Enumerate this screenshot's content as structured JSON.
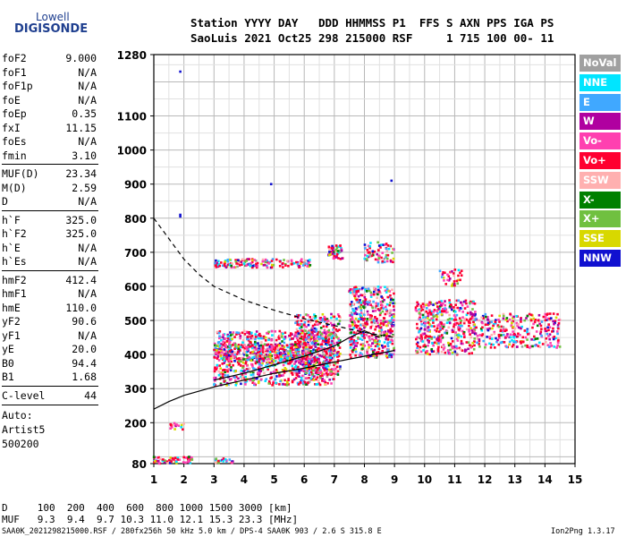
{
  "logo": {
    "line1": "Lowell",
    "line2": "DIGISONDE"
  },
  "header": {
    "row1": "Station YYYY DAY   DDD HHMMSS P1  FFS S AXN PPS IGA PS",
    "row2": "SaoLuis 2021 Oct25 298 215000 RSF     1 715 100 00- 11"
  },
  "params": {
    "group1": [
      {
        "name": "foF2",
        "value": "9.000"
      },
      {
        "name": "foF1",
        "value": "N/A"
      },
      {
        "name": "foF1p",
        "value": "N/A"
      },
      {
        "name": "foE",
        "value": "N/A"
      },
      {
        "name": "foEp",
        "value": "0.35"
      },
      {
        "name": "fxI",
        "value": "11.15"
      },
      {
        "name": "foEs",
        "value": "N/A"
      },
      {
        "name": "fmin",
        "value": "3.10"
      }
    ],
    "group2": [
      {
        "name": "MUF(D)",
        "value": "23.34"
      },
      {
        "name": "M(D)",
        "value": "2.59"
      },
      {
        "name": "D",
        "value": "N/A"
      }
    ],
    "group3": [
      {
        "name": "h`F",
        "value": "325.0"
      },
      {
        "name": "h`F2",
        "value": "325.0"
      },
      {
        "name": "h`E",
        "value": "N/A"
      },
      {
        "name": "h`Es",
        "value": "N/A"
      }
    ],
    "group4": [
      {
        "name": "hmF2",
        "value": "412.4"
      },
      {
        "name": "hmF1",
        "value": "N/A"
      },
      {
        "name": "hmE",
        "value": "110.0"
      },
      {
        "name": "yF2",
        "value": "90.6"
      },
      {
        "name": "yF1",
        "value": "N/A"
      },
      {
        "name": "yE",
        "value": "20.0"
      },
      {
        "name": "B0",
        "value": "94.4"
      },
      {
        "name": "B1",
        "value": "1.68"
      }
    ],
    "clevel": {
      "name": "C-level",
      "value": "44"
    },
    "auto": [
      "Auto:",
      "Artist5",
      "500200"
    ]
  },
  "legend": [
    {
      "label": "NoVal",
      "color": "#a0a0a0"
    },
    {
      "label": "NNE",
      "color": "#00e5ff"
    },
    {
      "label": "E",
      "color": "#40a8ff"
    },
    {
      "label": "W",
      "color": "#b000a0"
    },
    {
      "label": "Vo-",
      "color": "#ff40b0"
    },
    {
      "label": "Vo+",
      "color": "#ff0030"
    },
    {
      "label": "SSW",
      "color": "#ffb0b0"
    },
    {
      "label": "X-",
      "color": "#008000"
    },
    {
      "label": "X+",
      "color": "#70c040"
    },
    {
      "label": "SSE",
      "color": "#d8d800"
    },
    {
      "label": "NNW",
      "color": "#1010d0"
    }
  ],
  "chart_data": {
    "type": "scatter",
    "title": "",
    "xlabel": "",
    "ylabel": "",
    "xlim": [
      1,
      15
    ],
    "ylim": [
      80,
      1280
    ],
    "x_ticks": [
      1,
      2,
      3,
      4,
      5,
      6,
      7,
      8,
      9,
      10,
      11,
      12,
      13,
      14,
      15
    ],
    "y_ticks": [
      80,
      200,
      300,
      400,
      500,
      600,
      700,
      800,
      900,
      1000,
      1100,
      1280
    ],
    "grid": true,
    "traces": [
      {
        "style": "dashed",
        "x": [
          1.0,
          1.5,
          2.0,
          2.5,
          3.0,
          4.0,
          5.0,
          6.0,
          7.0,
          8.0,
          9.0
        ],
        "y": [
          800,
          740,
          680,
          635,
          600,
          560,
          530,
          505,
          485,
          465,
          450
        ]
      },
      {
        "style": "solid",
        "x": [
          1.0,
          1.5,
          2.0,
          3.0,
          4.0,
          5.0,
          6.0,
          7.0,
          8.0,
          9.0
        ],
        "y": [
          240,
          262,
          280,
          305,
          325,
          345,
          360,
          378,
          395,
          412
        ]
      },
      {
        "style": "solid",
        "x": [
          3.0,
          4.0,
          5.0,
          6.0,
          7.0,
          7.5,
          8.0,
          8.5
        ],
        "y": [
          325,
          345,
          370,
          395,
          425,
          450,
          470,
          450
        ]
      }
    ],
    "clusters": [
      {
        "x": [
          3.0,
          7.0
        ],
        "y": [
          310,
          470
        ],
        "n": 900
      },
      {
        "x": [
          3.0,
          6.2
        ],
        "y": [
          380,
          430
        ],
        "n": 300
      },
      {
        "x": [
          5.7,
          7.2
        ],
        "y": [
          340,
          520
        ],
        "n": 400
      },
      {
        "x": [
          7.5,
          9.0
        ],
        "y": [
          390,
          600
        ],
        "n": 500
      },
      {
        "x": [
          9.7,
          11.7
        ],
        "y": [
          400,
          560
        ],
        "n": 400
      },
      {
        "x": [
          11.5,
          14.5
        ],
        "y": [
          420,
          520
        ],
        "n": 300
      },
      {
        "x": [
          3.0,
          6.2
        ],
        "y": [
          655,
          680
        ],
        "n": 160
      },
      {
        "x": [
          6.8,
          7.3
        ],
        "y": [
          680,
          720
        ],
        "n": 50
      },
      {
        "x": [
          8.0,
          9.0
        ],
        "y": [
          670,
          730
        ],
        "n": 70
      },
      {
        "x": [
          10.5,
          11.3
        ],
        "y": [
          600,
          650
        ],
        "n": 35
      },
      {
        "x": [
          1.0,
          2.3
        ],
        "y": [
          80,
          100
        ],
        "n": 60
      },
      {
        "x": [
          1.5,
          2.0
        ],
        "y": [
          180,
          200
        ],
        "n": 15
      },
      {
        "x": [
          3.0,
          3.7
        ],
        "y": [
          82,
          95
        ],
        "n": 20
      }
    ],
    "isolated_points": [
      [
        1.88,
        1230
      ],
      [
        1.88,
        810
      ],
      [
        4.9,
        900
      ],
      [
        8.9,
        910
      ],
      [
        1.88,
        805
      ]
    ]
  },
  "axis_labels": {
    "x_ticks": [
      "1",
      "2",
      "3",
      "4",
      "5",
      "6",
      "7",
      "8",
      "9",
      "10",
      "11",
      "12",
      "13",
      "14",
      "15"
    ]
  },
  "muf_table": {
    "d_row": "D     100  200  400  600  800 1000 1500 3000 [km]",
    "muf_row": "MUF   9.3  9.4  9.7 10.3 11.0 12.1 15.3 23.3 [MHz]"
  },
  "footer": {
    "left": "SAA0K_2021298215000.RSF / 280fx256h 50 kHz 5.0 km / DPS-4 SAA0K 903 / 2.6 S 315.8 E",
    "right": "Ion2Png 1.3.17"
  }
}
